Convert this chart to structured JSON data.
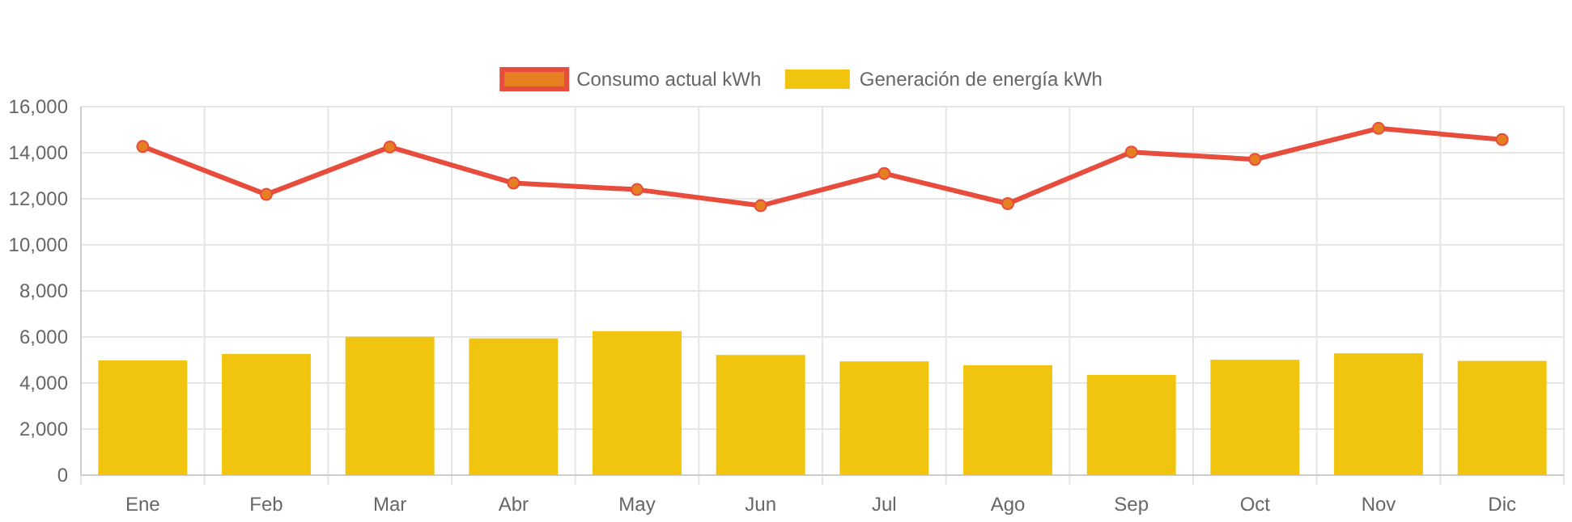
{
  "chart_data": {
    "type": "bar",
    "categories": [
      "Ene",
      "Feb",
      "Mar",
      "Abr",
      "May",
      "Jun",
      "Jul",
      "Ago",
      "Sep",
      "Oct",
      "Nov",
      "Dic"
    ],
    "series": [
      {
        "name": "Consumo actual kWh",
        "type": "line",
        "color": "#e74c3c",
        "marker": "circle",
        "values": [
          14270,
          12190,
          14250,
          12680,
          12400,
          11700,
          13100,
          11790,
          14030,
          13710,
          15060,
          14570
        ]
      },
      {
        "name": "Generación de energía kWh",
        "color": "#f1c40f",
        "values": [
          4980,
          5260,
          6010,
          5940,
          6250,
          5220,
          4940,
          4770,
          4350,
          5010,
          5290,
          4960
        ]
      }
    ],
    "ylim": [
      0,
      16000
    ],
    "yticks": [
      {
        "value": 0,
        "label": "0"
      },
      {
        "value": 2000,
        "label": "2,000"
      },
      {
        "value": 4000,
        "label": "4,000"
      },
      {
        "value": 6000,
        "label": "6,000"
      },
      {
        "value": 8000,
        "label": "8,000"
      },
      {
        "value": 10000,
        "label": "10,000"
      },
      {
        "value": 12000,
        "label": "12,000"
      },
      {
        "value": 14000,
        "label": "14,000"
      },
      {
        "value": 16000,
        "label": "16,000"
      }
    ],
    "grid": true,
    "legend": "top"
  }
}
